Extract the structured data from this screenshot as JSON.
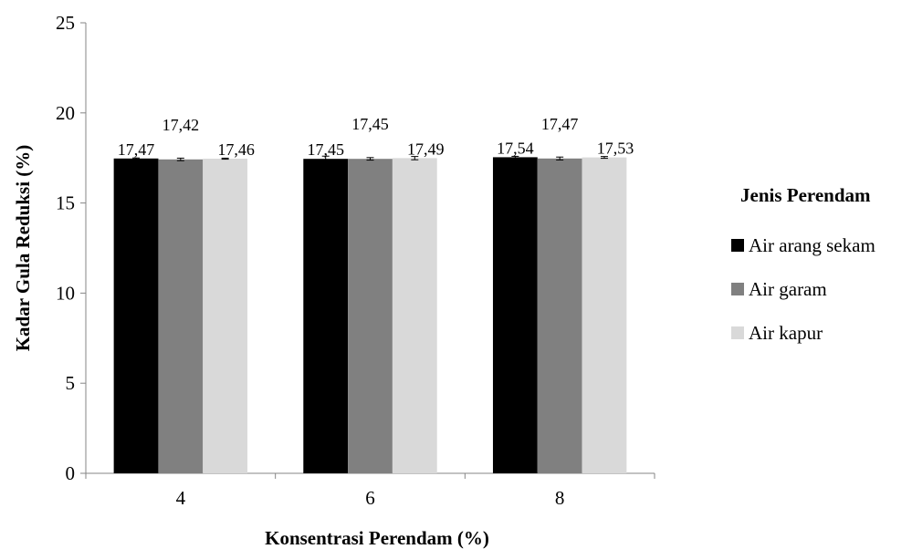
{
  "chart_data": {
    "type": "bar",
    "title": "",
    "xlabel": "Konsentrasi Perendam (%)",
    "ylabel": "Kadar Gula Reduksi (%)",
    "ylim": [
      0,
      25
    ],
    "yticks": [
      0,
      5,
      10,
      15,
      20,
      25
    ],
    "categories": [
      "4",
      "6",
      "8"
    ],
    "series": [
      {
        "name": "Air arang sekam",
        "color": "#000000",
        "values": [
          17.47,
          17.45,
          17.54
        ],
        "labels": [
          "17,47",
          "17,45",
          "17,54"
        ],
        "errors": [
          0.03,
          0.15,
          0.05
        ]
      },
      {
        "name": "Air garam",
        "color": "#808080",
        "values": [
          17.42,
          17.45,
          17.47
        ],
        "labels": [
          "17,42",
          "17,45",
          "17,47"
        ],
        "errors": [
          0.07,
          0.07,
          0.08
        ]
      },
      {
        "name": "Air kapur",
        "color": "#d9d9d9",
        "values": [
          17.46,
          17.49,
          17.53
        ],
        "labels": [
          "17,46",
          "17,49",
          "17,53"
        ],
        "errors": [
          0.03,
          0.09,
          0.05
        ]
      }
    ],
    "legend": {
      "title": "Jenis Perendam",
      "position": "right"
    },
    "grid": false,
    "error_bars": true
  }
}
